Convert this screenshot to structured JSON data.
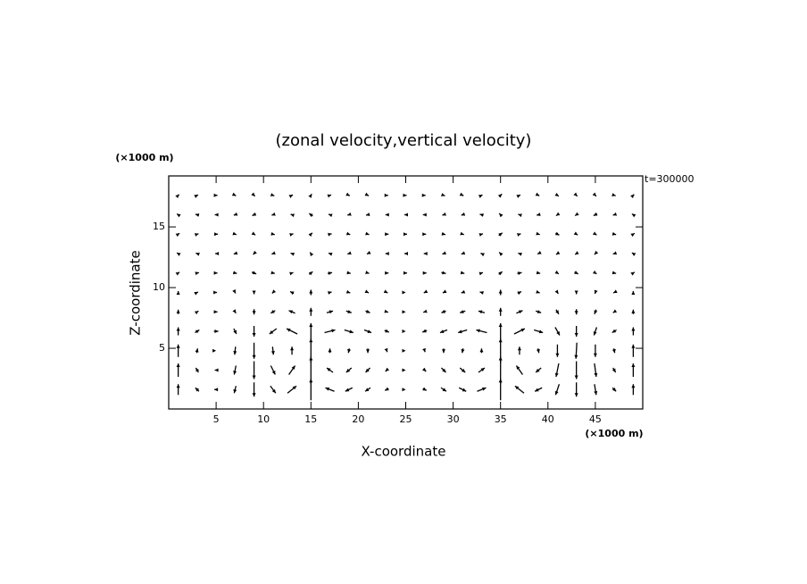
{
  "chart_data": {
    "type": "quiver",
    "title": "(zonal velocity,vertical velocity)",
    "x_label": "X-coordinate",
    "y_label": "Z-coordinate",
    "x_unit": "(×1000 m)",
    "y_unit": "(×1000 m)",
    "annotation": "t=300000",
    "xlim": [
      0,
      50
    ],
    "ylim": [
      0,
      19.2
    ],
    "xticks": [
      5,
      10,
      15,
      20,
      25,
      30,
      35,
      40,
      45
    ],
    "yticks": [
      5,
      10,
      15
    ],
    "color": "#000000",
    "x": [
      1,
      3,
      5,
      7,
      9,
      11,
      13,
      15,
      17,
      19,
      21,
      23,
      25,
      27,
      29,
      31,
      33,
      35,
      37,
      39,
      41,
      43,
      45,
      47,
      49
    ],
    "z": [
      1.6,
      3.2,
      4.8,
      6.4,
      8,
      9.6,
      11.2,
      12.8,
      14.4,
      16,
      17.6
    ],
    "u": [
      [
        0,
        -0.4,
        -0.4,
        -0.2,
        0,
        0.6,
        1,
        0,
        -1,
        -0.8,
        -0.6,
        -0.4,
        0,
        0.4,
        0.6,
        0.8,
        1,
        0,
        -1,
        -0.8,
        -0.4,
        0,
        0.2,
        0.4,
        0
      ],
      [
        0,
        -0.3,
        -0.3,
        -0.2,
        0,
        0.5,
        0.7,
        0,
        -0.7,
        -0.6,
        -0.5,
        -0.3,
        0,
        0.3,
        0.5,
        0.6,
        0.7,
        0,
        -0.7,
        -0.6,
        -0.3,
        0,
        0.2,
        0.3,
        0
      ],
      [
        0,
        0.1,
        0,
        -0.1,
        0,
        0.1,
        0,
        0,
        0,
        -0.1,
        0,
        0.1,
        0,
        0.1,
        0,
        -0.1,
        0,
        0,
        0,
        0.1,
        0,
        -0.1,
        0,
        0.1,
        0
      ],
      [
        0,
        0.5,
        0.5,
        0.3,
        0,
        -0.8,
        -1.2,
        0,
        1.2,
        1,
        0.8,
        0.5,
        0,
        -0.5,
        -0.8,
        -1,
        -1.2,
        0,
        1.2,
        1,
        0.5,
        0,
        -0.3,
        -0.5,
        0
      ],
      [
        0,
        0.3,
        0.3,
        0.2,
        0,
        -0.5,
        -0.7,
        0,
        0.7,
        0.6,
        0.5,
        0.3,
        0,
        -0.3,
        -0.5,
        -0.6,
        -0.7,
        0,
        0.7,
        0.6,
        0.3,
        0,
        -0.2,
        -0.3,
        0
      ],
      [
        0,
        0.2,
        0.2,
        0.1,
        0,
        -0.2,
        -0.4,
        0,
        0.4,
        0.3,
        0.2,
        0.2,
        0,
        -0.2,
        -0.2,
        -0.3,
        -0.4,
        0,
        0.4,
        0.3,
        0.2,
        0,
        -0.1,
        -0.2,
        0
      ],
      [
        0.3,
        0.4,
        0.3,
        0.4,
        0.5,
        0.4,
        0.3,
        0.4,
        0.5,
        0.4,
        0.3,
        0.4,
        0.3,
        0.4,
        0.5,
        0.4,
        0.3,
        0.4,
        0.5,
        0.4,
        0.3,
        0.4,
        0.3,
        0.4,
        0.3
      ],
      [
        -0.3,
        -0.3,
        -0.2,
        -0.3,
        -0.2,
        -0.3,
        -0.3,
        -0.2,
        -0.3,
        -0.3,
        -0.2,
        -0.3,
        -0.3,
        -0.2,
        -0.3,
        -0.3,
        -0.2,
        -0.3,
        -0.3,
        -0.2,
        -0.3,
        -0.3,
        -0.2,
        -0.3,
        -0.3
      ],
      [
        0.3,
        0.3,
        0.4,
        0.3,
        0.3,
        0.4,
        0.3,
        0.3,
        0.4,
        0.3,
        0.3,
        0.4,
        0.3,
        0.3,
        0.4,
        0.3,
        0.3,
        0.4,
        0.3,
        0.3,
        0.4,
        0.3,
        0.3,
        0.4,
        0.3
      ],
      [
        -0.3,
        -0.4,
        -0.3,
        -0.3,
        -0.4,
        -0.3,
        -0.3,
        -0.4,
        -0.3,
        -0.3,
        -0.4,
        -0.3,
        -0.3,
        -0.4,
        -0.3,
        -0.3,
        -0.4,
        -0.3,
        -0.3,
        -0.4,
        -0.3,
        -0.3,
        -0.4,
        -0.3,
        -0.3
      ],
      [
        0.2,
        0.2,
        0.3,
        0.2,
        0.2,
        0.3,
        0.2,
        0.2,
        0.3,
        0.2,
        0.2,
        0.3,
        0.2,
        0.2,
        0.3,
        0.2,
        0.2,
        0.3,
        0.2,
        0.2,
        0.3,
        0.2,
        0.2,
        0.3,
        0.2
      ]
    ],
    "w": [
      [
        1.2,
        0.4,
        0,
        -0.8,
        -1.6,
        -0.8,
        0.8,
        2.4,
        0.4,
        -0.4,
        -0.4,
        -0.2,
        0,
        -0.2,
        -0.4,
        -0.4,
        0.4,
        2.4,
        0.8,
        -0.4,
        -1.2,
        -1.6,
        -1.2,
        -0.4,
        1.2
      ],
      [
        1.5,
        0.5,
        0,
        -1,
        -2,
        -1,
        1,
        3,
        0.5,
        -0.5,
        -0.5,
        -0.3,
        0,
        -0.3,
        -0.5,
        -0.5,
        0.5,
        3,
        1,
        -0.5,
        -1.5,
        -2,
        -1.5,
        -0.5,
        1.5
      ],
      [
        1.4,
        0.5,
        0,
        -0.9,
        -1.8,
        -0.9,
        0.9,
        2.7,
        0.5,
        -0.5,
        -0.5,
        -0.3,
        0,
        -0.3,
        -0.5,
        -0.5,
        0.5,
        2.7,
        0.9,
        -0.5,
        -1.4,
        -1.8,
        -1.4,
        -0.5,
        1.4
      ],
      [
        0.9,
        0.3,
        0,
        -0.6,
        -1.2,
        -0.6,
        0.6,
        1.8,
        0.3,
        -0.3,
        -0.3,
        -0.2,
        0,
        -0.2,
        -0.3,
        -0.3,
        0.3,
        1.8,
        0.6,
        -0.3,
        -0.9,
        -1.2,
        -0.9,
        -0.3,
        0.9
      ],
      [
        0.5,
        0.2,
        0,
        -0.3,
        -0.6,
        -0.3,
        0.3,
        0.9,
        0.2,
        -0.2,
        -0.2,
        -0.1,
        0,
        -0.1,
        -0.2,
        -0.2,
        0.2,
        0.9,
        0.3,
        -0.2,
        -0.5,
        -0.6,
        -0.5,
        -0.2,
        0.5
      ],
      [
        0.3,
        0.1,
        0,
        -0.2,
        -0.4,
        -0.2,
        0.2,
        0.6,
        0.1,
        -0.1,
        -0.1,
        -0.1,
        0,
        -0.1,
        -0.1,
        -0.1,
        0.1,
        0.6,
        0.2,
        -0.1,
        -0.3,
        -0.4,
        -0.3,
        -0.1,
        0.3
      ],
      [
        0.2,
        0.1,
        0,
        -0.1,
        -0.2,
        -0.1,
        0.1,
        0.3,
        0.1,
        -0.1,
        -0.1,
        0,
        0,
        0,
        -0.1,
        -0.1,
        0.1,
        0.3,
        0.1,
        -0.1,
        -0.2,
        -0.2,
        -0.2,
        -0.1,
        0.2
      ],
      [
        0.2,
        0.1,
        0,
        -0.1,
        -0.2,
        -0.1,
        0.1,
        0.3,
        0.1,
        -0.1,
        -0.1,
        0,
        0,
        0,
        -0.1,
        -0.1,
        0.1,
        0.3,
        0.1,
        -0.1,
        -0.2,
        -0.2,
        -0.2,
        -0.1,
        0.2
      ],
      [
        0.2,
        0.1,
        0,
        -0.1,
        -0.2,
        -0.1,
        0.1,
        0.3,
        0.1,
        -0.1,
        -0.1,
        0,
        0,
        0,
        -0.1,
        -0.1,
        0.1,
        0.3,
        0.1,
        -0.1,
        -0.2,
        -0.2,
        -0.2,
        -0.1,
        0.2
      ],
      [
        0.2,
        0.1,
        0,
        -0.1,
        -0.2,
        -0.1,
        0.1,
        0.3,
        0.1,
        -0.1,
        -0.1,
        0,
        0,
        0,
        -0.1,
        -0.1,
        0.1,
        0.3,
        0.1,
        -0.1,
        -0.2,
        -0.2,
        -0.2,
        -0.1,
        0.2
      ],
      [
        0.2,
        0.1,
        0,
        -0.1,
        -0.2,
        -0.1,
        0.1,
        0.3,
        0.1,
        -0.1,
        -0.1,
        0,
        0,
        0,
        -0.1,
        -0.1,
        0.1,
        0.3,
        0.1,
        -0.1,
        -0.2,
        -0.2,
        -0.2,
        -0.1,
        0.2
      ]
    ]
  }
}
